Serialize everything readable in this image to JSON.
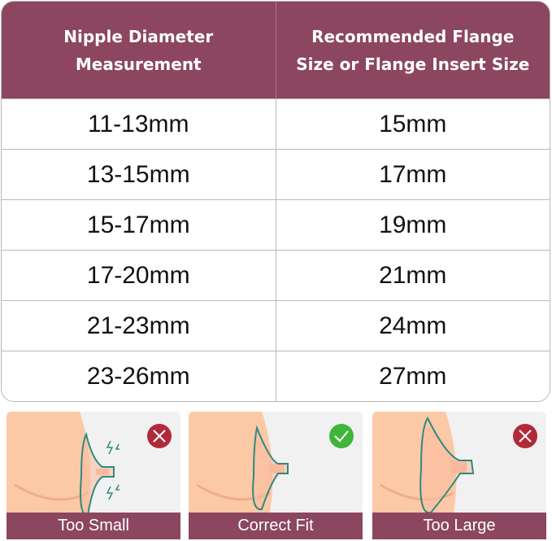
{
  "table": {
    "headers": [
      "Nipple Diameter\nMeasurement",
      "Recommended Flange\nSize or Flange Insert Size"
    ],
    "rows": [
      [
        "11-13mm",
        "15mm"
      ],
      [
        "13-15mm",
        "17mm"
      ],
      [
        "15-17mm",
        "19mm"
      ],
      [
        "17-20mm",
        "21mm"
      ],
      [
        "21-23mm",
        "24mm"
      ],
      [
        "23-26mm",
        "27mm"
      ]
    ]
  },
  "fit_panels": [
    {
      "label": "Too Small",
      "status": "incorrect",
      "status_icon": "x-circle-icon",
      "status_color": "#b12a3a"
    },
    {
      "label": "Correct Fit",
      "status": "correct",
      "status_icon": "check-circle-icon",
      "status_color": "#3fb53a"
    },
    {
      "label": "Too Large",
      "status": "incorrect",
      "status_icon": "x-circle-icon",
      "status_color": "#b12a3a"
    }
  ],
  "colors": {
    "header": "#8c4660",
    "skin": "#fbc9a6",
    "flange_outline": "#2e8a80"
  }
}
